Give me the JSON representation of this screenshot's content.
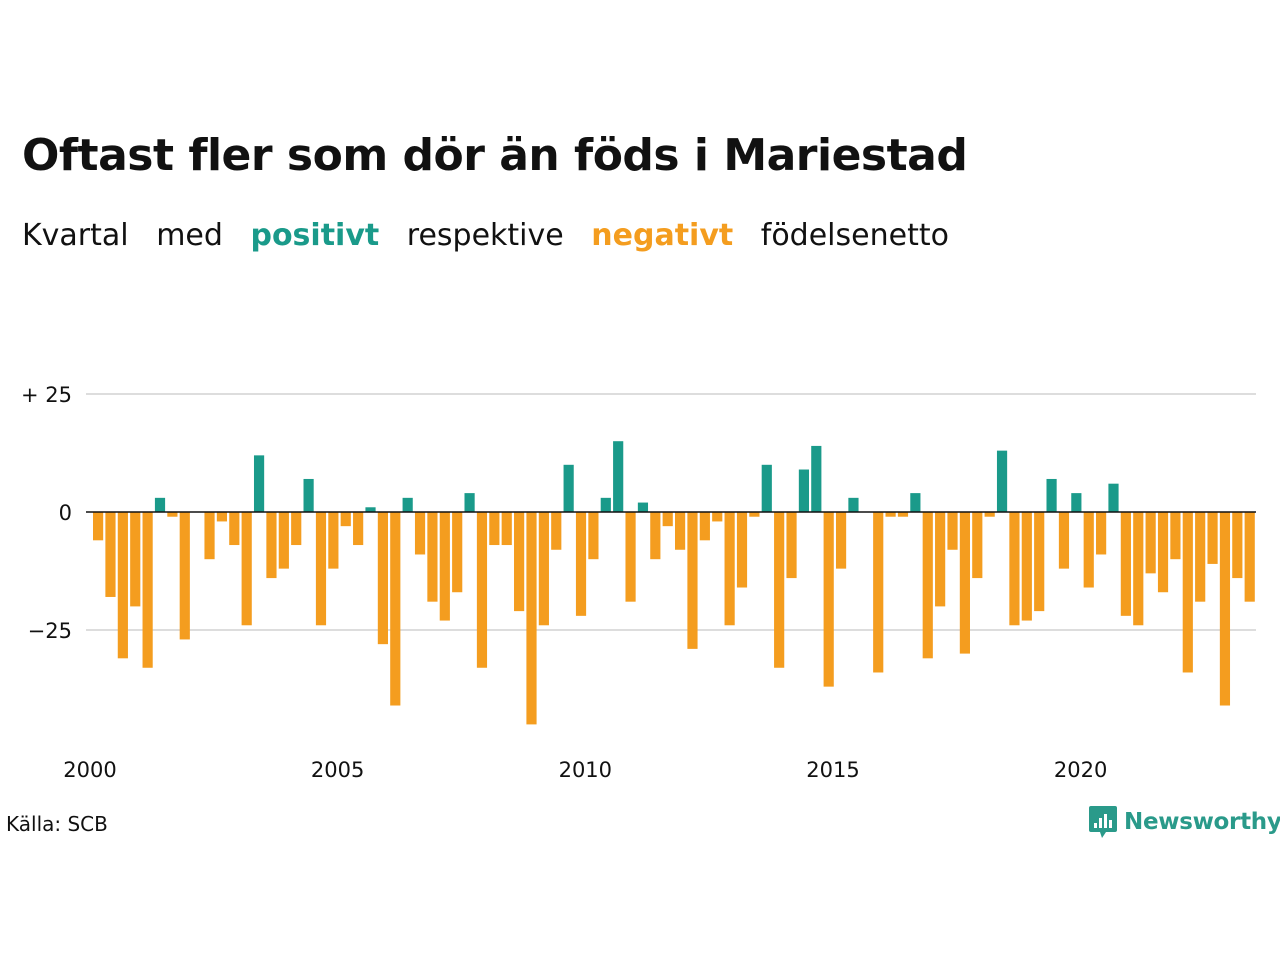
{
  "title": "Oftast fler som dör än föds i Mariestad",
  "subtitle": {
    "w1": "Kvartal",
    "w2": "med",
    "positive": "positivt",
    "w3": "respektive",
    "negative": "negativt",
    "w4": "födelsenetto"
  },
  "source": "Källa: SCB",
  "brand": "Newsworthy",
  "colors": {
    "positive": "#1a9a8a",
    "negative": "#f49d1f",
    "grid": "#dddddd",
    "zero": "#111111"
  },
  "chart_data": {
    "type": "bar",
    "x_start": 2000,
    "x_step": 0.25,
    "ylim": [
      -45,
      25
    ],
    "yticks": [
      25,
      0,
      -25
    ],
    "ytick_labels": [
      "+ 25",
      "0",
      "−25"
    ],
    "xticks": [
      2000,
      2005,
      2010,
      2015,
      2020
    ],
    "xtick_labels": [
      "2000",
      "2005",
      "2010",
      "2015",
      "2020"
    ],
    "values": [
      -6,
      -18,
      -31,
      -20,
      -33,
      3,
      -1,
      -27,
      0,
      -10,
      -2,
      -7,
      -24,
      12,
      -14,
      -12,
      -7,
      7,
      -24,
      -12,
      -3,
      -7,
      1,
      -28,
      -41,
      3,
      -9,
      -19,
      -23,
      -17,
      4,
      -33,
      -7,
      -7,
      -21,
      -45,
      -24,
      -8,
      10,
      -22,
      -10,
      3,
      15,
      -19,
      2,
      -10,
      -3,
      -8,
      -29,
      -6,
      -2,
      -24,
      -16,
      -1,
      10,
      -33,
      -14,
      9,
      14,
      -37,
      -12,
      3,
      0,
      -34,
      -1,
      -1,
      4,
      -31,
      -20,
      -8,
      -30,
      -14,
      -1,
      13,
      -24,
      -23,
      -21,
      7,
      -12,
      4,
      -16,
      -9,
      6,
      -22,
      -24,
      -13,
      -17,
      -10,
      -34,
      -19,
      -11,
      -41,
      -14,
      -19
    ]
  }
}
